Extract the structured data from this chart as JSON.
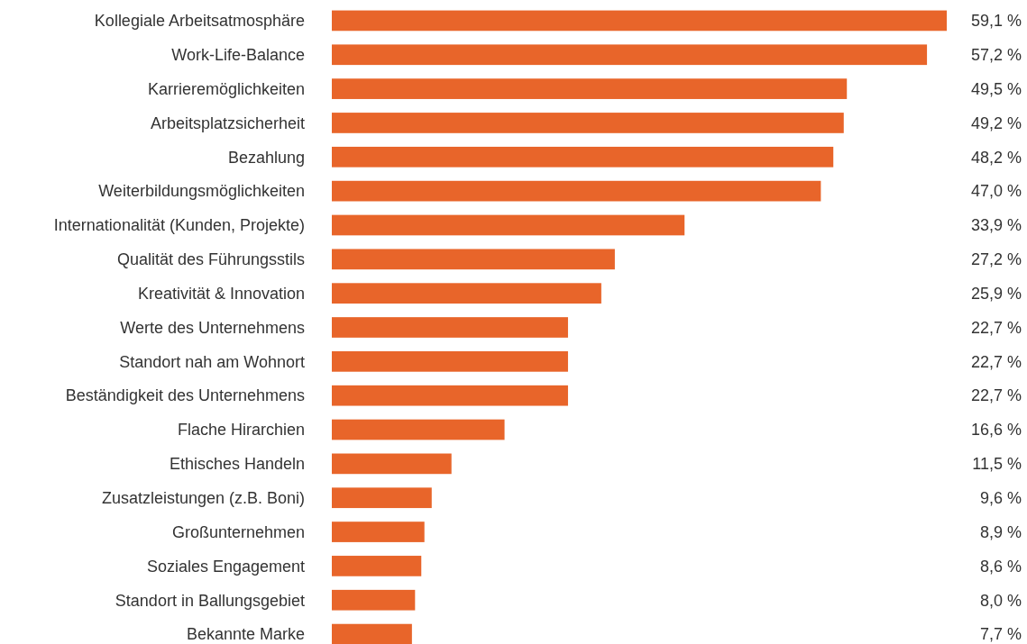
{
  "chart_data": {
    "type": "bar",
    "orientation": "horizontal",
    "color": "#e8652a",
    "categories": [
      "Kollegiale Arbeitsatmosphäre",
      "Work-Life-Balance",
      "Karrieremöglichkeiten",
      "Arbeitsplatzsicherheit",
      "Bezahlung",
      "Weiterbildungsmöglichkeiten",
      "Internationalität (Kunden, Projekte)",
      "Qualität des Führungsstils",
      "Kreativität & Innovation",
      "Werte des Unternehmens",
      "Standort nah am Wohnort",
      "Beständigkeit des Unternehmens",
      "Flache Hirarchien",
      "Ethisches Handeln",
      "Zusatzleistungen (z.B. Boni)",
      "Großunternehmen",
      "Soziales Engagement",
      "Standort in Ballungsgebiet",
      "Bekannte Marke"
    ],
    "values": [
      59.1,
      57.2,
      49.5,
      49.2,
      48.2,
      47.0,
      33.9,
      27.2,
      25.9,
      22.7,
      22.7,
      22.7,
      16.6,
      11.5,
      9.6,
      8.9,
      8.6,
      8.0,
      7.7
    ],
    "value_labels": [
      "59,1 %",
      "57,2 %",
      "49,5 %",
      "49,2 %",
      "48,2 %",
      "47,0 %",
      "33,9 %",
      "27,2 %",
      "25,9 %",
      "22,7 %",
      "22,7 %",
      "22,7 %",
      "16,6 %",
      "11,5 %",
      "9,6 %",
      "8,9 %",
      "8,6 %",
      "8,0 %",
      "7,7 %"
    ]
  }
}
